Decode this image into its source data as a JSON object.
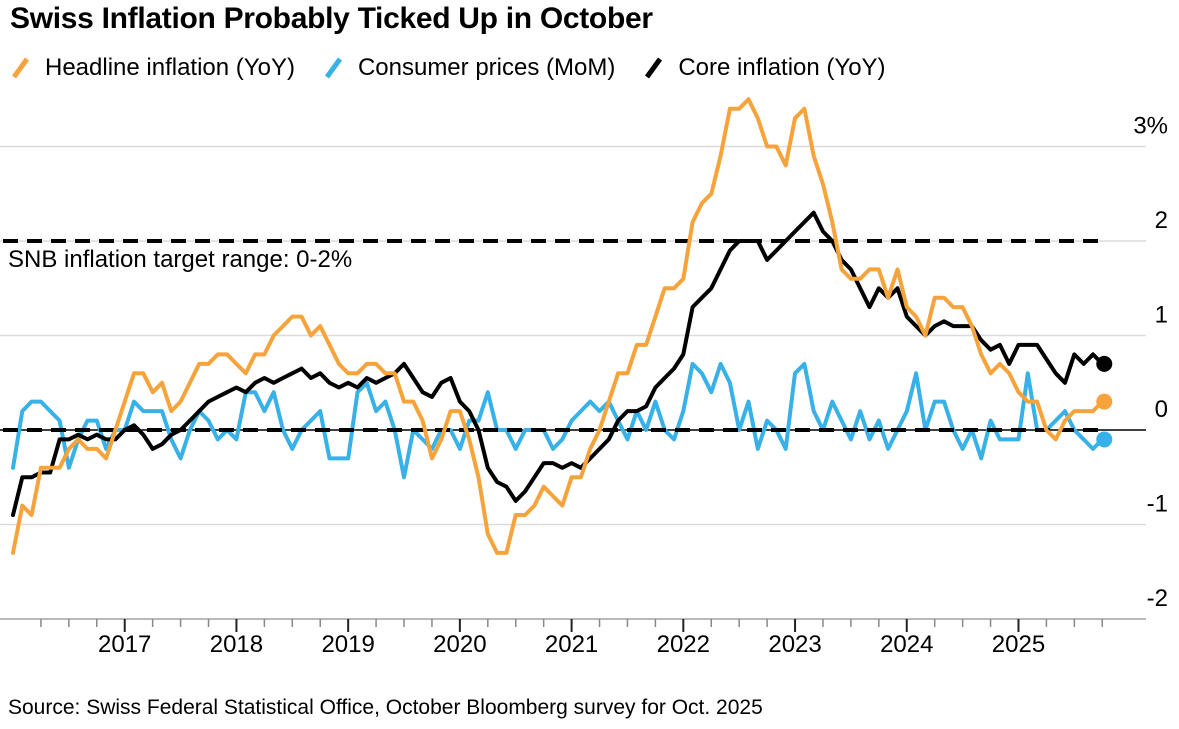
{
  "title": "Swiss Inflation Probably Ticked Up in October",
  "legend": [
    {
      "label": "Headline inflation (YoY)",
      "icon": "slash-icon",
      "color": "#F7A33B"
    },
    {
      "label": "Consumer prices (MoM)",
      "icon": "slash-icon",
      "color": "#38B1E8"
    },
    {
      "label": "Core inflation (YoY)",
      "icon": "slash-icon",
      "color": "#000000"
    }
  ],
  "annotation": "SNB inflation target range: 0-2%",
  "source": "Source: Swiss Federal Statistical Office, October Bloomberg survey for Oct. 2025",
  "colors": {
    "headline": "#F7A33B",
    "consumer_prices_mom": "#38B1E8",
    "core": "#000000",
    "gridline": "#DBDBDB",
    "zero_line": "#000000",
    "axis": "#B9B9B9",
    "major_tick": "#222222",
    "minor_tick": "#888888",
    "target_dash": "#000000"
  },
  "chart_data": {
    "type": "line",
    "title": "Swiss Inflation Probably Ticked Up in October",
    "frequency": "monthly",
    "x_start": "2016-01",
    "x_end": "2025-10",
    "x_tick_labels": [
      "2017",
      "2018",
      "2019",
      "2020",
      "2021",
      "2022",
      "2023",
      "2024",
      "2025"
    ],
    "minor_ticks": "quarterly",
    "y_tick_labels": [
      "3%",
      "2",
      "1",
      "0",
      "-1",
      "-2"
    ],
    "y_tick_values": [
      3,
      2,
      1,
      0,
      -1,
      -2
    ],
    "ylim": [
      -2,
      3.6
    ],
    "unit": "%",
    "grid": "horizontal",
    "legend_position": "top",
    "reference_lines": {
      "label": "SNB inflation target range: 0-2%",
      "upper": 2,
      "lower": 0,
      "style": "dashed"
    },
    "last_point_is_forecast": true,
    "forecast_oct_2025": {
      "headline_yoy": 0.3,
      "consumer_prices_mom": -0.1,
      "core_yoy": 0.7
    },
    "series": [
      {
        "name": "Headline inflation (YoY)",
        "color": "#F7A33B",
        "values": [
          -1.3,
          -0.8,
          -0.9,
          -0.4,
          -0.4,
          -0.4,
          -0.2,
          -0.1,
          -0.2,
          -0.2,
          -0.3,
          0.0,
          0.3,
          0.6,
          0.6,
          0.4,
          0.5,
          0.2,
          0.3,
          0.5,
          0.7,
          0.7,
          0.8,
          0.8,
          0.7,
          0.6,
          0.8,
          0.8,
          1.0,
          1.1,
          1.2,
          1.2,
          1.0,
          1.1,
          0.9,
          0.7,
          0.6,
          0.6,
          0.7,
          0.7,
          0.6,
          0.6,
          0.3,
          0.3,
          0.1,
          -0.3,
          -0.1,
          0.2,
          0.2,
          -0.1,
          -0.5,
          -1.1,
          -1.3,
          -1.3,
          -0.9,
          -0.9,
          -0.8,
          -0.6,
          -0.7,
          -0.8,
          -0.5,
          -0.5,
          -0.2,
          0.0,
          0.3,
          0.6,
          0.6,
          0.9,
          0.9,
          1.2,
          1.5,
          1.5,
          1.6,
          2.2,
          2.4,
          2.5,
          2.9,
          3.4,
          3.4,
          3.5,
          3.3,
          3.0,
          3.0,
          2.8,
          3.3,
          3.4,
          2.9,
          2.6,
          2.2,
          1.7,
          1.6,
          1.6,
          1.7,
          1.7,
          1.4,
          1.7,
          1.3,
          1.2,
          1.0,
          1.4,
          1.4,
          1.3,
          1.3,
          1.1,
          0.8,
          0.6,
          0.7,
          0.6,
          0.4,
          0.3,
          0.3,
          0.0,
          -0.1,
          0.1,
          0.2,
          0.2,
          0.2,
          0.3
        ]
      },
      {
        "name": "Consumer prices (MoM)",
        "color": "#38B1E8",
        "values": [
          -0.4,
          0.2,
          0.3,
          0.3,
          0.2,
          0.1,
          -0.4,
          -0.1,
          0.1,
          0.1,
          -0.2,
          0.0,
          0.0,
          0.3,
          0.2,
          0.2,
          0.2,
          -0.1,
          -0.3,
          0.0,
          0.2,
          0.1,
          -0.1,
          0.0,
          -0.1,
          0.4,
          0.4,
          0.2,
          0.4,
          0.0,
          -0.2,
          0.0,
          0.1,
          0.2,
          -0.3,
          -0.3,
          -0.3,
          0.4,
          0.5,
          0.2,
          0.3,
          0.0,
          -0.5,
          0.0,
          -0.1,
          -0.2,
          0.0,
          0.0,
          -0.2,
          0.1,
          0.1,
          0.4,
          0.0,
          0.0,
          -0.2,
          0.0,
          0.0,
          0.0,
          -0.2,
          -0.1,
          0.1,
          0.2,
          0.3,
          0.2,
          0.3,
          0.1,
          -0.1,
          0.2,
          0.0,
          0.3,
          0.0,
          -0.1,
          0.2,
          0.7,
          0.6,
          0.4,
          0.7,
          0.5,
          0.0,
          0.3,
          -0.2,
          0.1,
          0.0,
          -0.2,
          0.6,
          0.7,
          0.2,
          0.0,
          0.3,
          0.1,
          -0.1,
          0.2,
          -0.1,
          0.1,
          -0.2,
          0.0,
          0.2,
          0.6,
          0.0,
          0.3,
          0.3,
          0.0,
          -0.2,
          0.0,
          -0.3,
          0.1,
          -0.1,
          -0.1,
          -0.1,
          0.6,
          0.0,
          0.0,
          0.1,
          0.2,
          0.0,
          -0.1,
          -0.2,
          -0.1
        ]
      },
      {
        "name": "Core inflation (YoY)",
        "color": "#000000",
        "values": [
          -0.9,
          -0.5,
          -0.5,
          -0.45,
          -0.45,
          -0.1,
          -0.1,
          -0.05,
          -0.1,
          -0.05,
          -0.1,
          -0.1,
          0.0,
          0.05,
          -0.05,
          -0.2,
          -0.15,
          -0.05,
          0.0,
          0.1,
          0.2,
          0.3,
          0.35,
          0.4,
          0.45,
          0.4,
          0.5,
          0.55,
          0.5,
          0.55,
          0.6,
          0.65,
          0.55,
          0.6,
          0.5,
          0.45,
          0.5,
          0.45,
          0.55,
          0.5,
          0.55,
          0.6,
          0.7,
          0.55,
          0.4,
          0.35,
          0.5,
          0.55,
          0.3,
          0.2,
          0.0,
          -0.4,
          -0.55,
          -0.6,
          -0.75,
          -0.65,
          -0.5,
          -0.35,
          -0.35,
          -0.4,
          -0.35,
          -0.4,
          -0.3,
          -0.2,
          -0.1,
          0.1,
          0.2,
          0.2,
          0.25,
          0.45,
          0.55,
          0.65,
          0.8,
          1.3,
          1.4,
          1.5,
          1.7,
          1.9,
          2.0,
          2.0,
          2.0,
          1.8,
          1.9,
          2.0,
          2.1,
          2.2,
          2.3,
          2.1,
          2.0,
          1.8,
          1.7,
          1.5,
          1.3,
          1.5,
          1.4,
          1.5,
          1.2,
          1.1,
          1.0,
          1.1,
          1.15,
          1.1,
          1.1,
          1.1,
          0.95,
          0.85,
          0.9,
          0.7,
          0.9,
          0.9,
          0.9,
          0.75,
          0.6,
          0.5,
          0.8,
          0.7,
          0.8,
          0.7
        ]
      }
    ]
  }
}
